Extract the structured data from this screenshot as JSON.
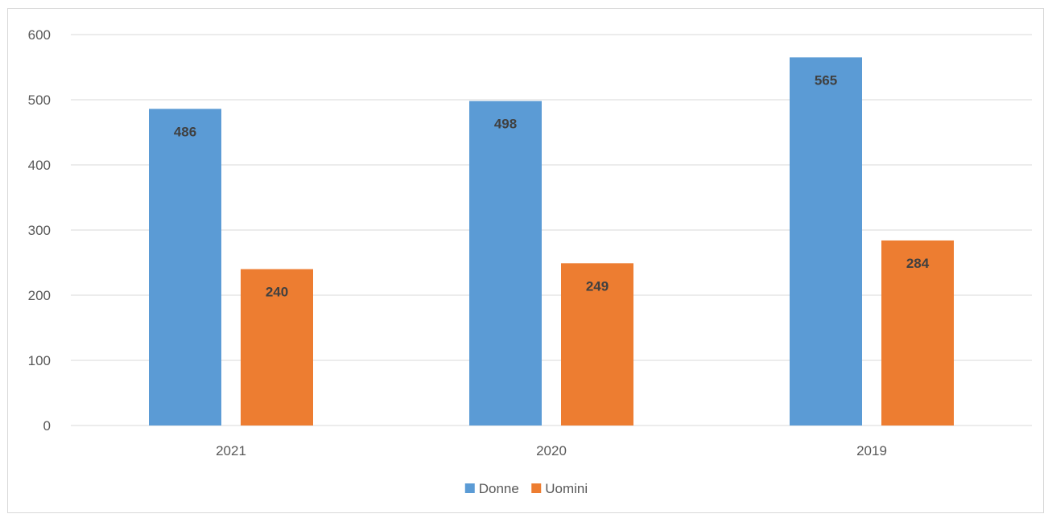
{
  "chart_data": {
    "type": "bar",
    "categories": [
      "2021",
      "2020",
      "2019"
    ],
    "series": [
      {
        "name": "Donne",
        "values": [
          486,
          498,
          565
        ],
        "color": "#5b9bd5"
      },
      {
        "name": "Uomini",
        "values": [
          240,
          249,
          284
        ],
        "color": "#ed7d31"
      }
    ],
    "ylim": [
      0,
      600
    ],
    "yticks": [
      0,
      100,
      200,
      300,
      400,
      500,
      600
    ],
    "grid": true,
    "legend_position": "bottom",
    "data_labels": true,
    "title": "",
    "xlabel": "",
    "ylabel": ""
  }
}
